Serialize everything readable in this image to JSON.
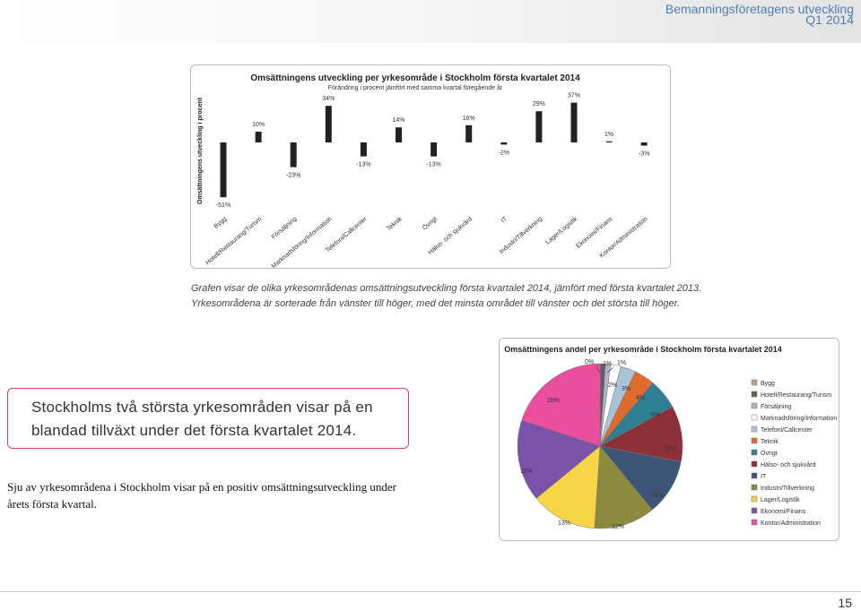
{
  "header": {
    "title": "Bemanningsföretagens utveckling",
    "period": "Q1 2014"
  },
  "bar_chart": {
    "title": "Omsättningens utveckling per yrkesområde i Stockholm första kvartalet 2014",
    "subtitle": "Förändring i procent jämfört med samma kvartal föregående år",
    "ylabel": "Omsättningens utveckling i procent"
  },
  "pie_chart": {
    "title": "Omsättningens andel per yrkesområde i Stockholm första kvartalet 2014"
  },
  "chart_data": [
    {
      "type": "bar",
      "title": "Omsättningens utveckling per yrkesområde i Stockholm första kvartalet 2014",
      "subtitle": "Förändring i procent jämfört med samma kvartal föregående år",
      "ylabel": "Omsättningens utveckling i procent",
      "xlabel": "",
      "unit": "%",
      "grid": false,
      "categories": [
        "Bygg",
        "Hotell/Restaurang/Turism",
        "Försäljning",
        "Marknadsföring/Information",
        "Telefoni/Callcenter",
        "Teknik",
        "Övrigt",
        "Hälso- och sjukvård",
        "IT",
        "Industri/Tillverkning",
        "Lager/Logistik",
        "Ekonomi/Finans",
        "Kontor/Administration"
      ],
      "values": [
        -51,
        10,
        -23,
        34,
        -13,
        14,
        -13,
        16,
        -2,
        29,
        37,
        1,
        -3
      ],
      "labels": [
        "-51%",
        "10%",
        "-23%",
        "34%",
        "-13%",
        "14%",
        "-13%",
        "16%",
        "-2%",
        "29%",
        "37%",
        "1%",
        "-3%"
      ],
      "color": "#222222"
    },
    {
      "type": "pie",
      "title": "Omsättningens andel per yrkesområde i Stockholm första kvartalet 2014",
      "legend_position": "right",
      "slices": [
        {
          "name": "Bygg",
          "value": 0,
          "label": "0%",
          "color": "#b9a38c"
        },
        {
          "name": "Hotell/Restaurang/Turism",
          "value": 1,
          "label": "1%",
          "color": "#5c5c6e"
        },
        {
          "name": "Försäljning",
          "value": 1,
          "label": "1%",
          "color": "#b3b3c6"
        },
        {
          "name": "Marknadsföring/Information",
          "value": 2,
          "label": "2%",
          "color": "#ffffff"
        },
        {
          "name": "Telefoni/Callcenter",
          "value": 3,
          "label": "3%",
          "color": "#a9c4d8"
        },
        {
          "name": "Teknik",
          "value": 4,
          "label": "4%",
          "color": "#e06b2c"
        },
        {
          "name": "Övrigt",
          "value": 6,
          "label": "6%",
          "color": "#2e7f91"
        },
        {
          "name": "Hälso- och sjukvård",
          "value": 11,
          "label": "11%",
          "color": "#8e3037"
        },
        {
          "name": "IT",
          "value": 11,
          "label": "11%",
          "color": "#3d5678"
        },
        {
          "name": "Industri/Tillverkning",
          "value": 12,
          "label": "12%",
          "color": "#8a8b3e"
        },
        {
          "name": "Lager/Logistik",
          "value": 13,
          "label": "13%",
          "color": "#f8d447"
        },
        {
          "name": "Ekonomi/Finans",
          "value": 16,
          "label": "16%",
          "color": "#7a52a8"
        },
        {
          "name": "Kontor/Administration",
          "value": 20,
          "label": "20%",
          "color": "#e94f9d"
        }
      ]
    }
  ],
  "captions": [
    "Grafen visar de olika yrkesområdenas omsättningsutveckling första kvartalet 2014, jämfört med första kvartalet 2013.",
    "Yrkesområdena är sorterade från vänster till höger, med det minsta området till vänster och det största till höger."
  ],
  "callout": {
    "line1": "Stockholms två största yrkesområden visar på en",
    "line2": "blandad tillväxt under det första kvartalet 2014."
  },
  "body_text": {
    "line1": "Sju av yrkesområdena i Stockholm visar på en positiv omsättningsutveckling under",
    "line2": "årets första kvartal."
  },
  "page_number": "15"
}
